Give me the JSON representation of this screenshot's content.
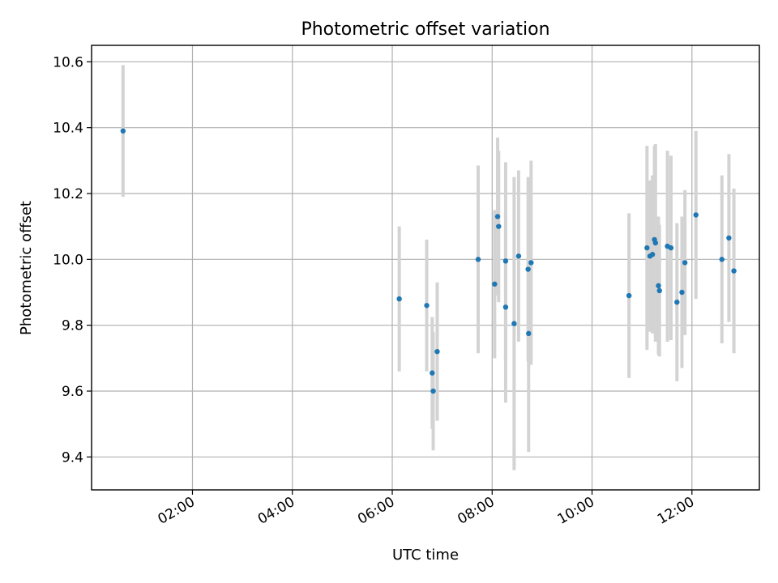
{
  "chart_data": {
    "type": "scatter",
    "title": "Photometric offset variation",
    "xlabel": "UTC time",
    "ylabel": "Photometric offset",
    "x_unit": "hours UTC",
    "xlim": [
      -0.02,
      13.35
    ],
    "ylim": [
      9.3,
      10.65
    ],
    "x_ticks": [
      {
        "value": 2,
        "label": "02:00"
      },
      {
        "value": 4,
        "label": "04:00"
      },
      {
        "value": 6,
        "label": "06:00"
      },
      {
        "value": 8,
        "label": "08:00"
      },
      {
        "value": 10,
        "label": "10:00"
      },
      {
        "value": 12,
        "label": "12:00"
      }
    ],
    "y_ticks": [
      {
        "value": 9.4,
        "label": "9.4"
      },
      {
        "value": 9.6,
        "label": "9.6"
      },
      {
        "value": 9.8,
        "label": "9.8"
      },
      {
        "value": 10.0,
        "label": "10.0"
      },
      {
        "value": 10.2,
        "label": "10.2"
      },
      {
        "value": 10.4,
        "label": "10.4"
      },
      {
        "value": 10.6,
        "label": "10.6"
      }
    ],
    "grid": true,
    "marker_color": "#1f77b4",
    "errorbar_color": "#d3d3d3",
    "points": [
      {
        "x": 0.61,
        "y": 10.39,
        "yerr": 0.2
      },
      {
        "x": 6.14,
        "y": 9.88,
        "yerr": 0.22
      },
      {
        "x": 6.69,
        "y": 9.86,
        "yerr": 0.2
      },
      {
        "x": 6.8,
        "y": 9.655,
        "yerr": 0.17
      },
      {
        "x": 6.82,
        "y": 9.6,
        "yerr": 0.18
      },
      {
        "x": 6.9,
        "y": 9.72,
        "yerr": 0.21
      },
      {
        "x": 7.72,
        "y": 10.0,
        "yerr": 0.285
      },
      {
        "x": 8.05,
        "y": 9.925,
        "yerr": 0.225
      },
      {
        "x": 8.11,
        "y": 10.13,
        "yerr": 0.24
      },
      {
        "x": 8.13,
        "y": 10.1,
        "yerr": 0.23
      },
      {
        "x": 8.27,
        "y": 9.995,
        "yerr": 0.3
      },
      {
        "x": 8.27,
        "y": 9.855,
        "yerr": 0.29
      },
      {
        "x": 8.44,
        "y": 9.805,
        "yerr": 0.445
      },
      {
        "x": 8.53,
        "y": 10.01,
        "yerr": 0.26
      },
      {
        "x": 8.72,
        "y": 9.97,
        "yerr": 0.28
      },
      {
        "x": 8.73,
        "y": 9.775,
        "yerr": 0.36
      },
      {
        "x": 8.78,
        "y": 9.99,
        "yerr": 0.31
      },
      {
        "x": 10.74,
        "y": 9.89,
        "yerr": 0.25
      },
      {
        "x": 11.1,
        "y": 10.035,
        "yerr": 0.31
      },
      {
        "x": 11.16,
        "y": 10.01,
        "yerr": 0.23
      },
      {
        "x": 11.21,
        "y": 10.015,
        "yerr": 0.24
      },
      {
        "x": 11.25,
        "y": 10.06,
        "yerr": 0.285
      },
      {
        "x": 11.27,
        "y": 10.05,
        "yerr": 0.3
      },
      {
        "x": 11.33,
        "y": 9.92,
        "yerr": 0.21
      },
      {
        "x": 11.35,
        "y": 9.905,
        "yerr": 0.2
      },
      {
        "x": 11.51,
        "y": 10.04,
        "yerr": 0.29
      },
      {
        "x": 11.58,
        "y": 10.035,
        "yerr": 0.28
      },
      {
        "x": 11.7,
        "y": 9.87,
        "yerr": 0.24
      },
      {
        "x": 11.8,
        "y": 9.9,
        "yerr": 0.23
      },
      {
        "x": 11.86,
        "y": 9.99,
        "yerr": 0.22
      },
      {
        "x": 12.08,
        "y": 10.135,
        "yerr": 0.255
      },
      {
        "x": 12.6,
        "y": 10.0,
        "yerr": 0.255
      },
      {
        "x": 12.74,
        "y": 10.065,
        "yerr": 0.255
      },
      {
        "x": 12.84,
        "y": 9.965,
        "yerr": 0.25
      }
    ]
  }
}
